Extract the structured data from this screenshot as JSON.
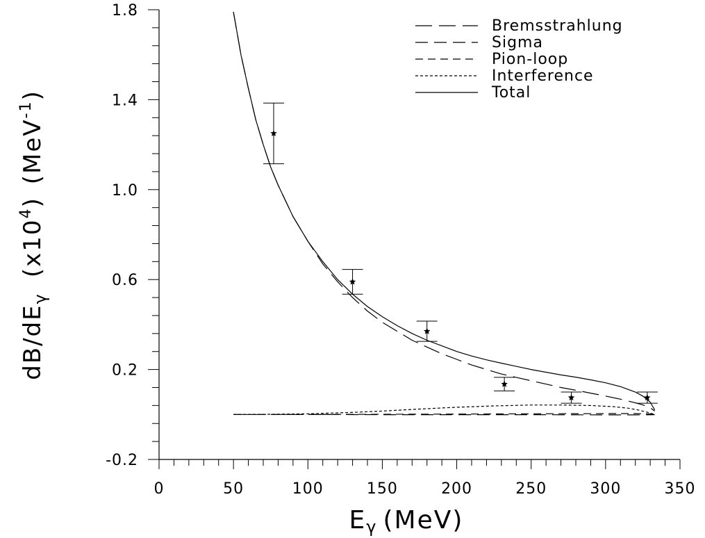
{
  "chart_data": {
    "type": "line",
    "xlabel": "E",
    "xlabel_sub": "γ",
    "xlabel_unit": "(MeV)",
    "ylabel_main": "dB/dE",
    "ylabel_sub": "γ",
    "ylabel_scale": "(x10",
    "ylabel_scale_exp": "4",
    "ylabel_scale_close": ")",
    "ylabel_unit": "(MeV",
    "ylabel_unit_exp": "-1",
    "ylabel_unit_close": ")",
    "xlim": [
      0,
      350
    ],
    "ylim": [
      -0.2,
      1.8
    ],
    "x_ticks": [
      0,
      50,
      100,
      150,
      200,
      250,
      300,
      350
    ],
    "x_tick_labels": [
      "0",
      "50",
      "100",
      "150",
      "200",
      "250",
      "300",
      "350"
    ],
    "y_ticks": [
      -0.2,
      0.2,
      0.6,
      1.0,
      1.4,
      1.8
    ],
    "y_tick_labels": [
      "-0.2",
      "0.2",
      "0.6",
      "1.0",
      "1.4",
      "1.8"
    ],
    "grid": false,
    "legend_position": "top-right",
    "series": [
      {
        "name": "Bremsstrahlung",
        "dash": "long",
        "x": [
          50,
          55,
          60,
          65,
          70,
          75,
          80,
          90,
          100,
          110,
          120,
          130,
          140,
          150,
          160,
          170,
          180,
          190,
          200,
          210,
          220,
          230,
          240,
          250,
          260,
          270,
          280,
          290,
          300,
          310,
          320,
          325,
          330,
          333
        ],
        "y": [
          1.79,
          1.6,
          1.45,
          1.31,
          1.2,
          1.1,
          1.02,
          0.88,
          0.77,
          0.67,
          0.59,
          0.52,
          0.46,
          0.41,
          0.37,
          0.33,
          0.3,
          0.27,
          0.245,
          0.22,
          0.2,
          0.18,
          0.165,
          0.15,
          0.135,
          0.12,
          0.108,
          0.095,
          0.082,
          0.068,
          0.052,
          0.043,
          0.03,
          0.015
        ]
      },
      {
        "name": "Sigma",
        "dash": "longmedium",
        "x": [
          50,
          100,
          150,
          200,
          250,
          300,
          320,
          333
        ],
        "y": [
          0.0,
          0.0,
          -0.001,
          -0.001,
          -0.001,
          -0.002,
          -0.002,
          -0.001
        ]
      },
      {
        "name": "Pion-loop",
        "dash": "medium",
        "x": [
          50,
          100,
          150,
          200,
          250,
          300,
          320,
          333
        ],
        "y": [
          0.0,
          0.0,
          0.001,
          0.002,
          0.003,
          0.004,
          0.004,
          0.002
        ]
      },
      {
        "name": "Interference",
        "dash": "short",
        "x": [
          50,
          75,
          100,
          125,
          150,
          175,
          200,
          225,
          250,
          270,
          290,
          305,
          315,
          322,
          328,
          333
        ],
        "y": [
          0.0,
          0.001,
          0.003,
          0.008,
          0.015,
          0.024,
          0.032,
          0.038,
          0.042,
          0.042,
          0.04,
          0.035,
          0.028,
          0.02,
          0.01,
          0.0
        ]
      },
      {
        "name": "Total",
        "dash": "solid",
        "x": [
          50,
          55,
          60,
          65,
          70,
          75,
          80,
          90,
          100,
          110,
          120,
          130,
          140,
          150,
          160,
          170,
          180,
          190,
          200,
          210,
          220,
          230,
          240,
          250,
          260,
          270,
          280,
          290,
          300,
          310,
          320,
          325,
          330,
          333
        ],
        "y": [
          1.79,
          1.6,
          1.45,
          1.31,
          1.2,
          1.1,
          1.02,
          0.88,
          0.77,
          0.68,
          0.6,
          0.535,
          0.48,
          0.435,
          0.395,
          0.36,
          0.33,
          0.305,
          0.28,
          0.26,
          0.243,
          0.228,
          0.214,
          0.2,
          0.188,
          0.176,
          0.166,
          0.154,
          0.141,
          0.124,
          0.1,
          0.082,
          0.055,
          0.02
        ]
      }
    ],
    "points": [
      {
        "x": 77,
        "y": 1.25,
        "yerr_low": 1.115,
        "yerr_high": 1.385
      },
      {
        "x": 130,
        "y": 0.59,
        "yerr_low": 0.535,
        "yerr_high": 0.645
      },
      {
        "x": 180,
        "y": 0.37,
        "yerr_low": 0.325,
        "yerr_high": 0.415
      },
      {
        "x": 232,
        "y": 0.135,
        "yerr_low": 0.105,
        "yerr_high": 0.165
      },
      {
        "x": 277,
        "y": 0.075,
        "yerr_low": 0.05,
        "yerr_high": 0.1
      },
      {
        "x": 328,
        "y": 0.075,
        "yerr_low": 0.05,
        "yerr_high": 0.1
      }
    ]
  }
}
